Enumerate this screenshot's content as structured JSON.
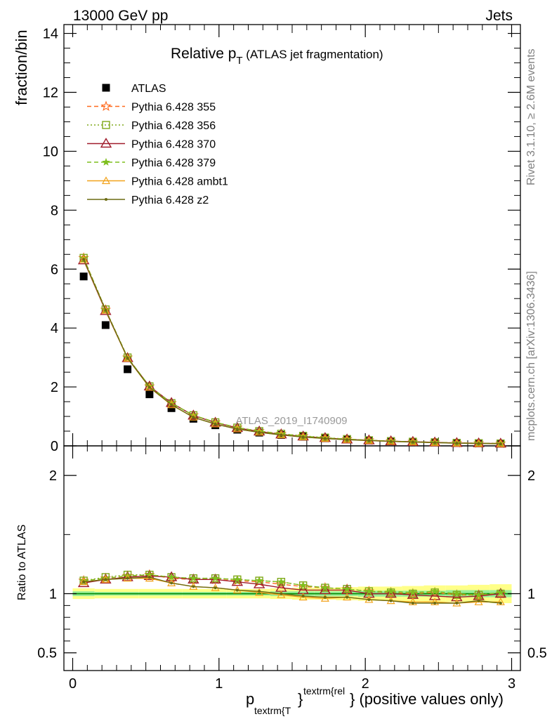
{
  "header": {
    "left": "13000 GeV pp",
    "right": "Jets"
  },
  "title": {
    "main": "Relative p",
    "sub": "T",
    "rest": " (ATLAS jet fragmentation)"
  },
  "side_labels": {
    "top": "Rivet 3.1.10, ≥ 2.6M events",
    "bottom": "mcplots.cern.ch [arXiv:1306.3436]"
  },
  "watermark": "ATLAS_2019_I1740909",
  "xlabel": {
    "p": "p",
    "sub": "textrm{T",
    "sup": "textrm{rel",
    "brace1": "}",
    "brace2": "}",
    "rest": " (positive values only)"
  },
  "colors": {
    "data": "#000000",
    "p355": "#ff6a1f",
    "p356": "#7fa81a",
    "p370": "#a01c2c",
    "p379": "#7fbf1f",
    "ambt1": "#f2a21b",
    "z2": "#6b6b12",
    "band_outer": "#ffff88",
    "band_inner": "#99ee99",
    "ref_line": "#008800"
  },
  "chart_data": [
    {
      "type": "line",
      "ylabel": "fraction/bin",
      "xlim": [
        -0.06,
        3.06
      ],
      "ylim": [
        0,
        14.3
      ],
      "yticks": [
        "0",
        "2",
        "4",
        "6",
        "8",
        "10",
        "12",
        "14"
      ],
      "x": [
        0.075,
        0.225,
        0.375,
        0.525,
        0.675,
        0.825,
        0.975,
        1.125,
        1.275,
        1.425,
        1.575,
        1.725,
        1.875,
        2.025,
        2.175,
        2.325,
        2.475,
        2.625,
        2.775,
        2.925
      ],
      "series": [
        {
          "name": "ATLAS",
          "key": "data",
          "marker": "square",
          "values": [
            5.75,
            4.1,
            2.6,
            1.75,
            1.28,
            0.92,
            0.7,
            0.55,
            0.45,
            0.37,
            0.31,
            0.26,
            0.22,
            0.19,
            0.16,
            0.14,
            0.12,
            0.1,
            0.09,
            0.08
          ]
        },
        {
          "name": "Pythia 6.428 355",
          "key": "p355",
          "marker": "star",
          "dash": "6,4",
          "values": [
            6.38,
            4.62,
            3.0,
            2.02,
            1.45,
            1.04,
            0.8,
            0.62,
            0.5,
            0.41,
            0.33,
            0.27,
            0.23,
            0.19,
            0.16,
            0.14,
            0.12,
            0.1,
            0.09,
            0.08
          ]
        },
        {
          "name": "Pythia 6.428 356",
          "key": "p356",
          "marker": "square-open",
          "dash": "2,3",
          "values": [
            6.38,
            4.63,
            3.0,
            2.02,
            1.45,
            1.04,
            0.8,
            0.62,
            0.5,
            0.41,
            0.34,
            0.28,
            0.23,
            0.19,
            0.16,
            0.14,
            0.12,
            0.1,
            0.09,
            0.08
          ]
        },
        {
          "name": "Pythia 6.428 370",
          "key": "p370",
          "marker": "triangle-open",
          "dash": "",
          "values": [
            6.3,
            4.58,
            2.98,
            2.02,
            1.46,
            1.03,
            0.79,
            0.61,
            0.49,
            0.39,
            0.32,
            0.27,
            0.22,
            0.19,
            0.16,
            0.14,
            0.12,
            0.1,
            0.09,
            0.08
          ]
        },
        {
          "name": "Pythia 6.428 379",
          "key": "p379",
          "marker": "star-small",
          "dash": "6,4",
          "values": [
            6.37,
            4.62,
            3.0,
            2.02,
            1.45,
            1.04,
            0.8,
            0.62,
            0.5,
            0.41,
            0.33,
            0.27,
            0.23,
            0.19,
            0.16,
            0.14,
            0.12,
            0.1,
            0.09,
            0.08
          ]
        },
        {
          "name": "Pythia 6.428 ambt1",
          "key": "ambt1",
          "marker": "triangle-open-small",
          "dash": "",
          "values": [
            6.32,
            4.6,
            2.97,
            1.98,
            1.39,
            0.97,
            0.74,
            0.57,
            0.46,
            0.37,
            0.3,
            0.25,
            0.21,
            0.18,
            0.15,
            0.13,
            0.11,
            0.09,
            0.08,
            0.07
          ]
        },
        {
          "name": "Pythia 6.428 z2",
          "key": "z2",
          "marker": "dot",
          "dash": "",
          "values": [
            6.33,
            4.61,
            2.98,
            1.99,
            1.4,
            0.97,
            0.74,
            0.57,
            0.46,
            0.37,
            0.3,
            0.25,
            0.21,
            0.18,
            0.15,
            0.13,
            0.11,
            0.09,
            0.08,
            0.07
          ]
        }
      ]
    },
    {
      "type": "line",
      "ylabel": "Ratio to ATLAS",
      "xlim": [
        -0.06,
        3.06
      ],
      "ylim": [
        0.35,
        2.25
      ],
      "yticks": [
        "0.5",
        "1",
        "2"
      ],
      "ytick_values": [
        0.5,
        1,
        2
      ],
      "xticks": [
        "0",
        "1",
        "2",
        "3"
      ],
      "xtick_values": [
        0,
        1,
        2,
        3
      ],
      "band_outer": [
        0.045,
        0.04,
        0.04,
        0.04,
        0.04,
        0.04,
        0.04,
        0.04,
        0.04,
        0.045,
        0.05,
        0.05,
        0.055,
        0.06,
        0.06,
        0.065,
        0.07,
        0.07,
        0.075,
        0.08
      ],
      "band_inner": [
        0.02,
        0.015,
        0.015,
        0.015,
        0.015,
        0.015,
        0.015,
        0.015,
        0.015,
        0.02,
        0.02,
        0.02,
        0.02,
        0.025,
        0.025,
        0.025,
        0.025,
        0.03,
        0.03,
        0.03
      ],
      "x": [
        0.075,
        0.225,
        0.375,
        0.525,
        0.675,
        0.825,
        0.975,
        1.125,
        1.275,
        1.425,
        1.575,
        1.725,
        1.875,
        2.025,
        2.175,
        2.325,
        2.475,
        2.625,
        2.775,
        2.925
      ],
      "series": [
        {
          "name": "Pythia 6.428 355",
          "key": "p355",
          "marker": "star",
          "dash": "6,4",
          "values": [
            1.11,
            1.13,
            1.15,
            1.16,
            1.13,
            1.12,
            1.12,
            1.11,
            1.1,
            1.08,
            1.06,
            1.05,
            1.04,
            1.02,
            1.01,
            1.0,
            1.01,
            0.99,
            0.99,
            1.0
          ]
        },
        {
          "name": "Pythia 6.428 356",
          "key": "p356",
          "marker": "square-open",
          "dash": "2,3",
          "values": [
            1.11,
            1.14,
            1.16,
            1.16,
            1.14,
            1.13,
            1.13,
            1.12,
            1.11,
            1.1,
            1.07,
            1.05,
            1.04,
            1.02,
            1.01,
            1.0,
            1.01,
            0.99,
            0.99,
            1.0
          ]
        },
        {
          "name": "Pythia 6.428 370",
          "key": "p370",
          "marker": "triangle-open",
          "dash": "",
          "values": [
            1.09,
            1.12,
            1.14,
            1.15,
            1.14,
            1.12,
            1.12,
            1.1,
            1.08,
            1.05,
            1.03,
            1.03,
            1.03,
            1.0,
            1.0,
            0.99,
            0.98,
            0.97,
            0.98,
            1.0
          ]
        },
        {
          "name": "Pythia 6.428 379",
          "key": "p379",
          "marker": "star-small",
          "dash": "6,4",
          "values": [
            1.11,
            1.13,
            1.15,
            1.16,
            1.14,
            1.13,
            1.13,
            1.12,
            1.11,
            1.1,
            1.07,
            1.05,
            1.04,
            1.02,
            1.02,
            1.01,
            1.02,
            1.0,
            0.99,
            1.01
          ]
        },
        {
          "name": "Pythia 6.428 ambt1",
          "key": "ambt1",
          "marker": "triangle-open-small",
          "dash": "",
          "values": [
            1.1,
            1.12,
            1.13,
            1.13,
            1.09,
            1.06,
            1.05,
            1.03,
            1.01,
            0.99,
            0.97,
            0.96,
            0.97,
            0.95,
            0.94,
            0.93,
            0.93,
            0.92,
            0.93,
            0.93
          ]
        },
        {
          "name": "Pythia 6.428 z2",
          "key": "z2",
          "marker": "dot",
          "dash": "",
          "values": [
            1.1,
            1.12,
            1.13,
            1.14,
            1.09,
            1.06,
            1.05,
            1.03,
            1.02,
            1.0,
            0.98,
            0.97,
            0.97,
            0.95,
            0.94,
            0.92,
            0.92,
            0.92,
            0.94,
            0.92
          ]
        }
      ]
    }
  ]
}
